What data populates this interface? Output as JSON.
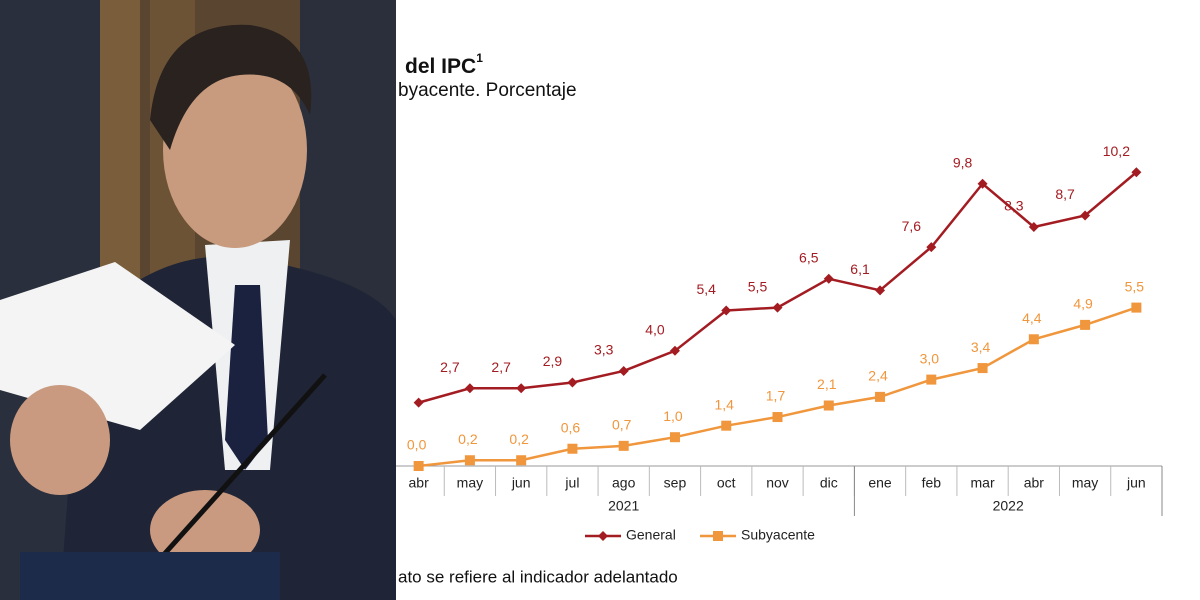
{
  "chart_data": {
    "type": "line",
    "title": "del IPC",
    "title_superscript": "1",
    "subtitle": "byacente. Porcentaje",
    "footnote": "ato se refiere al indicador adelantado",
    "categories": [
      "abr",
      "may",
      "jun",
      "jul",
      "ago",
      "sep",
      "oct",
      "nov",
      "dic",
      "ene",
      "feb",
      "mar",
      "abr",
      "may",
      "jun"
    ],
    "groups": [
      {
        "label": "2021",
        "first": 0,
        "last": 8
      },
      {
        "label": "2022",
        "first": 9,
        "last": 14
      }
    ],
    "ylim": [
      0,
      11
    ],
    "series": [
      {
        "name": "General",
        "color": "#a31c22",
        "marker": "diamond",
        "values": [
          2.2,
          2.7,
          2.7,
          2.9,
          3.3,
          4.0,
          5.4,
          5.5,
          6.5,
          6.1,
          7.6,
          9.8,
          8.3,
          8.7,
          10.2
        ],
        "value_labels": [
          null,
          "2,7",
          "2,7",
          "2,9",
          "3,3",
          "4,0",
          "5,4",
          "5,5",
          "6,5",
          "6,1",
          "7,6",
          "9,8",
          "8,3",
          "8,7",
          "10,2"
        ]
      },
      {
        "name": "Subyacente",
        "color": "#f0963c",
        "marker": "square",
        "values": [
          0.0,
          0.2,
          0.2,
          0.6,
          0.7,
          1.0,
          1.4,
          1.7,
          2.1,
          2.4,
          3.0,
          3.4,
          4.4,
          4.9,
          5.5
        ],
        "value_labels": [
          "0,0",
          "0,2",
          "0,2",
          "0,6",
          "0,7",
          "1,0",
          "1,4",
          "1,7",
          "2,1",
          "2,4",
          "3,0",
          "3,4",
          "4,4",
          "4,9",
          "5,5"
        ]
      }
    ]
  }
}
